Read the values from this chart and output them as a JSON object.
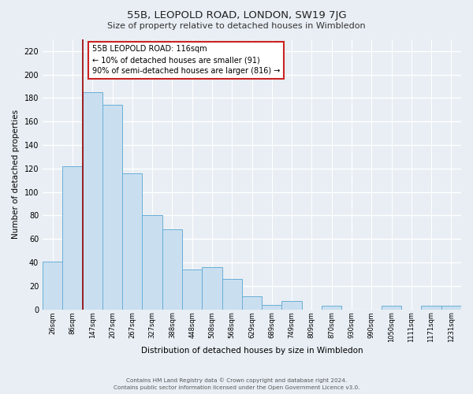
{
  "title": "55B, LEOPOLD ROAD, LONDON, SW19 7JG",
  "subtitle": "Size of property relative to detached houses in Wimbledon",
  "xlabel": "Distribution of detached houses by size in Wimbledon",
  "ylabel": "Number of detached properties",
  "categories": [
    "26sqm",
    "86sqm",
    "147sqm",
    "207sqm",
    "267sqm",
    "327sqm",
    "388sqm",
    "448sqm",
    "508sqm",
    "568sqm",
    "629sqm",
    "689sqm",
    "749sqm",
    "809sqm",
    "870sqm",
    "930sqm",
    "990sqm",
    "1050sqm",
    "1111sqm",
    "1171sqm",
    "1231sqm"
  ],
  "values": [
    41,
    122,
    185,
    174,
    116,
    80,
    68,
    34,
    36,
    26,
    11,
    4,
    7,
    0,
    3,
    0,
    0,
    3,
    0,
    3,
    3
  ],
  "bar_color": "#c9dff0",
  "bar_edge_color": "#6aaed6",
  "vline_color": "#990000",
  "annotation_text": "55B LEOPOLD ROAD: 116sqm\n← 10% of detached houses are smaller (91)\n90% of semi-detached houses are larger (816) →",
  "annotation_box_color": "white",
  "annotation_box_edge_color": "#cc2222",
  "ylim": [
    0,
    230
  ],
  "yticks": [
    0,
    20,
    40,
    60,
    80,
    100,
    120,
    140,
    160,
    180,
    200,
    220
  ],
  "footer1": "Contains HM Land Registry data © Crown copyright and database right 2024.",
  "footer2": "Contains public sector information licensed under the Open Government Licence v3.0.",
  "bg_color": "#e8eef4",
  "plot_bg_color": "#e8eef4"
}
